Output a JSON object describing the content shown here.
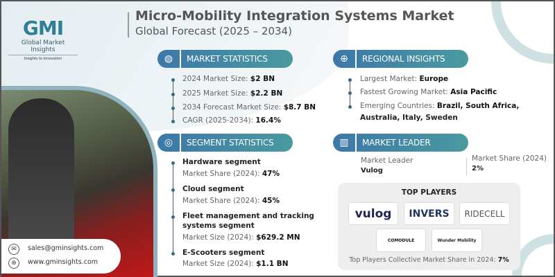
{
  "brand": {
    "logo_text": "GMI",
    "name": "Global Market Insights",
    "tagline": "Insights to Innovation"
  },
  "header": {
    "title": "Micro-Mobility Integration Systems Market",
    "subtitle": "Global Forecast (2025 – 2034)"
  },
  "colors": {
    "header_gradient_start": "#3c78a8",
    "header_gradient_end": "#4a9aa0",
    "bullet": "#2f6e80"
  },
  "market_statistics": {
    "label": "MARKET STATISTICS",
    "icon": "globe-chart-icon",
    "items": [
      {
        "label": "2024 Market Size: ",
        "value": "$2 BN"
      },
      {
        "label": "2025 Market Size: ",
        "value": "$2.2 BN"
      },
      {
        "label": "2034 Forecast Market Size: ",
        "value": "$8.7 BN"
      },
      {
        "label": "CAGR (2025-2034): ",
        "value": "16.4%"
      }
    ]
  },
  "segment_statistics": {
    "label": "SEGMENT STATISTICS",
    "icon": "target-icon",
    "items": [
      {
        "name": "Hardware segment",
        "metric": "Market Share (2024): ",
        "value": "47%"
      },
      {
        "name": "Cloud segment",
        "metric": "Market Share (2024): ",
        "value": "45%"
      },
      {
        "name_line1": "Fleet management and tracking",
        "name_line2": "systems segment",
        "metric": "Market Size (2024): ",
        "value": "$629.2 MN"
      },
      {
        "name": "E-Scooters segment",
        "metric": "Market Size (2024): ",
        "value": "$1.1 BN"
      }
    ]
  },
  "regional_insights": {
    "label": "REGIONAL INSIGHTS",
    "icon": "globe-icon",
    "items": [
      {
        "label": "Largest Market: ",
        "value": "Europe"
      },
      {
        "label": "Fastest Growing Market: ",
        "value": "Asia Pacific"
      },
      {
        "label": "Emerging Countries: ",
        "value": "Brazil, South Africa,",
        "value_line2": "Australia, Italy, Sweden"
      }
    ]
  },
  "market_leader": {
    "label": "MARKET LEADER",
    "icon": "bar-chart-icon",
    "leader_label": "Market Leader",
    "leader": "Vulog",
    "share_label": "Market Share (2024)",
    "share": "2%"
  },
  "top_players": {
    "title": "TOP PLAYERS",
    "logos": [
      "vulog",
      "INVERS",
      "RIDECELL",
      "COMODULE",
      "Wunder Mobility"
    ],
    "footer_label": "Top Players Collective Market Share in 2024: ",
    "footer_value": "7%"
  },
  "contact": {
    "email": "sales@gminsights.com",
    "website": "www.gminsights.com"
  }
}
